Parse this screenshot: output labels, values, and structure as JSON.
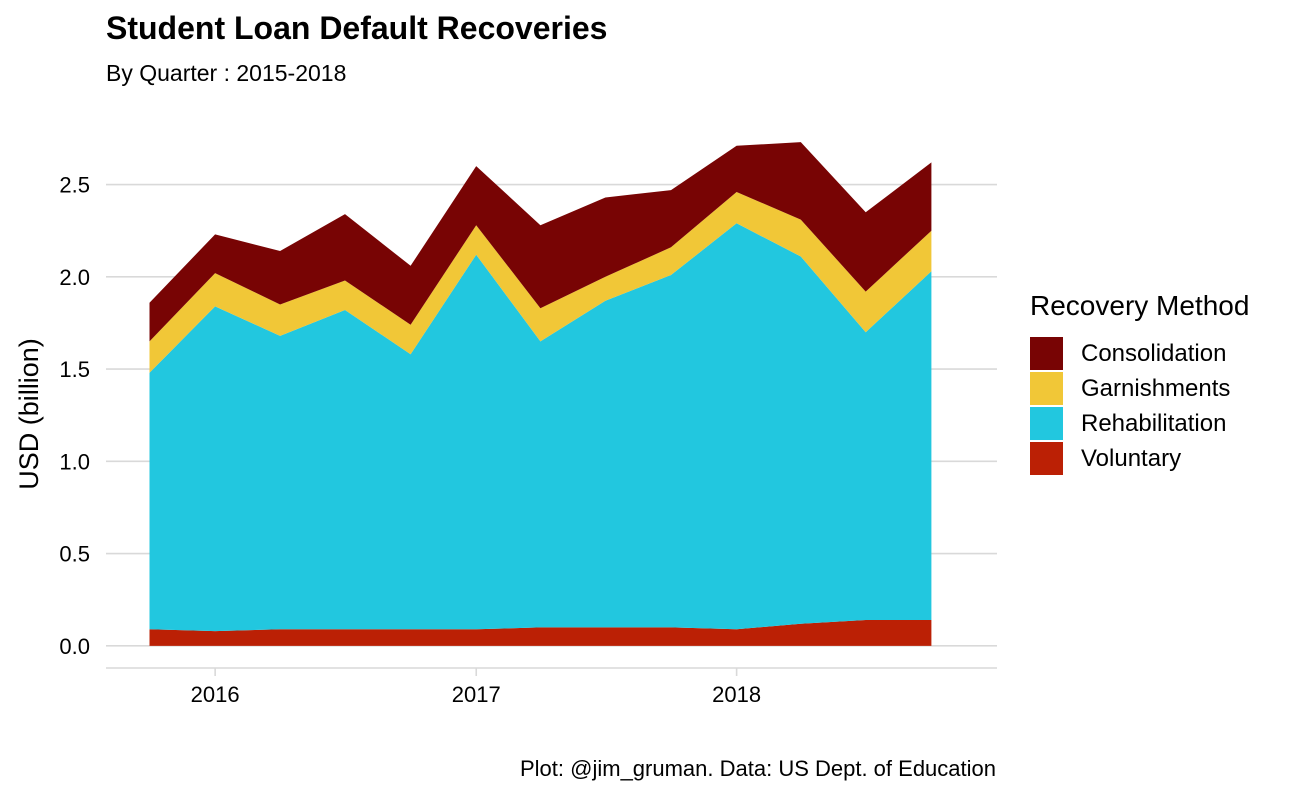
{
  "chart_data": {
    "type": "area",
    "stacked": true,
    "title": "Student Loan Default Recoveries",
    "subtitle": "By Quarter : 2015-2018",
    "caption": "Plot: @jim_gruman. Data: US Dept. of Education",
    "xlabel": "",
    "ylabel": "USD (billion)",
    "x": [
      "2015-10-01",
      "2016-01-01",
      "2016-04-01",
      "2016-07-01",
      "2016-10-01",
      "2017-01-01",
      "2017-04-01",
      "2017-07-01",
      "2017-10-01",
      "2018-01-01",
      "2018-04-01",
      "2018-07-01",
      "2018-10-01"
    ],
    "x_ticks": [
      "2016",
      "2017",
      "2018"
    ],
    "y_ticks": [
      "0.0",
      "0.5",
      "1.0",
      "1.5",
      "2.0",
      "2.5"
    ],
    "ylim": [
      -0.12,
      2.85
    ],
    "legend_title": "Recovery Method",
    "legend_position": "right",
    "grid": "horizontal",
    "series": [
      {
        "name": "Voluntary",
        "color": "#BB2005",
        "values": [
          0.09,
          0.08,
          0.09,
          0.09,
          0.09,
          0.09,
          0.1,
          0.1,
          0.1,
          0.09,
          0.12,
          0.14,
          0.14
        ]
      },
      {
        "name": "Rehabilitation",
        "color": "#22C7DF",
        "values": [
          1.39,
          1.76,
          1.59,
          1.73,
          1.49,
          2.03,
          1.55,
          1.77,
          1.91,
          2.2,
          1.99,
          1.56,
          1.89
        ]
      },
      {
        "name": "Garnishments",
        "color": "#F1C737",
        "values": [
          0.17,
          0.18,
          0.17,
          0.16,
          0.16,
          0.16,
          0.18,
          0.13,
          0.15,
          0.17,
          0.2,
          0.22,
          0.22
        ]
      },
      {
        "name": "Consolidation",
        "color": "#780404",
        "values": [
          0.21,
          0.21,
          0.29,
          0.36,
          0.32,
          0.32,
          0.45,
          0.43,
          0.31,
          0.25,
          0.42,
          0.43,
          0.37
        ]
      }
    ]
  }
}
